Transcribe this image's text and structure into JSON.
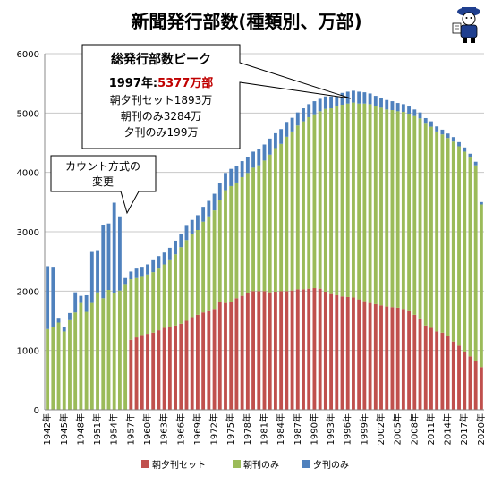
{
  "chart_data": {
    "type": "bar",
    "stacked": true,
    "title": "新聞発行部数(種類別、万部)",
    "ylim": [
      0,
      6000
    ],
    "yticks": [
      0,
      1000,
      2000,
      3000,
      4000,
      5000,
      6000
    ],
    "grid": true,
    "legend_position": "bottom",
    "categories": [
      "1942年",
      "1943年",
      "1944年",
      "1945年",
      "1946年",
      "1947年",
      "1948年",
      "1949年",
      "1950年",
      "1951年",
      "1952年",
      "1953年",
      "1954年",
      "1955年",
      "1956年",
      "1957年",
      "1958年",
      "1959年",
      "1960年",
      "1961年",
      "1962年",
      "1963年",
      "1964年",
      "1965年",
      "1966年",
      "1967年",
      "1968年",
      "1969年",
      "1970年",
      "1971年",
      "1972年",
      "1973年",
      "1974年",
      "1975年",
      "1976年",
      "1977年",
      "1978年",
      "1979年",
      "1980年",
      "1981年",
      "1982年",
      "1983年",
      "1984年",
      "1985年",
      "1986年",
      "1987年",
      "1988年",
      "1989年",
      "1990年",
      "1991年",
      "1992年",
      "1993年",
      "1994年",
      "1995年",
      "1996年",
      "1997年",
      "1998年",
      "1999年",
      "2000年",
      "2001年",
      "2002年",
      "2003年",
      "2004年",
      "2005年",
      "2006年",
      "2007年",
      "2008年",
      "2009年",
      "2010年",
      "2011年",
      "2012年",
      "2013年",
      "2014年",
      "2015年",
      "2016年",
      "2017年",
      "2018年",
      "2019年",
      "2020年"
    ],
    "xtick_labels": [
      "1942年",
      "1945年",
      "1948年",
      "1951年",
      "1954年",
      "1957年",
      "1960年",
      "1963年",
      "1966年",
      "1969年",
      "1972年",
      "1975年",
      "1978年",
      "1981年",
      "1984年",
      "1987年",
      "1990年",
      "1993年",
      "1996年",
      "1999年",
      "2002年",
      "2005年",
      "2008年",
      "2011年",
      "2014年",
      "2017年",
      "2020年"
    ],
    "series": [
      {
        "name": "朝夕刊セット",
        "color": "#c0504d",
        "values": [
          0,
          0,
          0,
          0,
          0,
          0,
          0,
          0,
          0,
          0,
          0,
          0,
          0,
          0,
          0,
          1180,
          1220,
          1260,
          1280,
          1300,
          1340,
          1380,
          1400,
          1420,
          1450,
          1500,
          1560,
          1600,
          1640,
          1660,
          1700,
          1820,
          1800,
          1820,
          1880,
          1920,
          1970,
          2000,
          2000,
          2000,
          1980,
          1990,
          2000,
          2000,
          2010,
          2030,
          2030,
          2040,
          2050,
          2040,
          1990,
          1950,
          1930,
          1910,
          1900,
          1893,
          1860,
          1830,
          1800,
          1780,
          1760,
          1740,
          1730,
          1720,
          1700,
          1660,
          1600,
          1540,
          1420,
          1380,
          1320,
          1300,
          1240,
          1150,
          1080,
          980,
          900,
          820,
          720
        ]
      },
      {
        "name": "朝刊のみ",
        "color": "#9bbb59",
        "values": [
          1360,
          1390,
          1470,
          1320,
          1510,
          1640,
          1800,
          1650,
          1800,
          1980,
          1880,
          2020,
          1960,
          2010,
          2120,
          1020,
          1000,
          980,
          1000,
          1020,
          1040,
          1070,
          1120,
          1200,
          1290,
          1360,
          1400,
          1430,
          1530,
          1600,
          1660,
          1710,
          1900,
          1950,
          1950,
          2000,
          2020,
          2080,
          2120,
          2200,
          2320,
          2420,
          2480,
          2600,
          2680,
          2760,
          2830,
          2890,
          2930,
          2990,
          3080,
          3130,
          3180,
          3230,
          3260,
          3284,
          3300,
          3330,
          3350,
          3340,
          3330,
          3320,
          3320,
          3310,
          3320,
          3330,
          3350,
          3370,
          3400,
          3390,
          3370,
          3340,
          3340,
          3370,
          3360,
          3370,
          3350,
          3300,
          2740
        ]
      },
      {
        "name": "夕刊のみ",
        "color": "#4f81bd",
        "values": [
          1060,
          1020,
          80,
          80,
          120,
          340,
          120,
          280,
          860,
          710,
          1230,
          1120,
          1530,
          1250,
          100,
          130,
          160,
          170,
          170,
          200,
          210,
          200,
          210,
          230,
          230,
          240,
          240,
          250,
          250,
          260,
          280,
          290,
          290,
          290,
          280,
          270,
          270,
          270,
          270,
          270,
          270,
          250,
          250,
          250,
          230,
          220,
          220,
          220,
          220,
          210,
          210,
          200,
          200,
          200,
          200,
          199,
          200,
          190,
          180,
          170,
          160,
          160,
          150,
          140,
          130,
          120,
          110,
          100,
          95,
          90,
          85,
          80,
          75,
          75,
          70,
          70,
          65,
          60,
          40
        ]
      }
    ]
  },
  "callouts": {
    "peak_heading": "総発行部数ピーク",
    "peak_year": "1997年:",
    "peak_total": "5377万部",
    "peak_set": "朝夕刊セット1893万",
    "peak_morning": "朝刊のみ3284万",
    "peak_evening": "夕刊のみ199万",
    "method_line1": "カウント方式の",
    "method_line2": "変更"
  },
  "colors": {
    "set": "#c0504d",
    "morning": "#9bbb59",
    "evening": "#4f81bd",
    "peak_total": "#c00000"
  },
  "icons": {
    "logo": "mascot-icon"
  }
}
